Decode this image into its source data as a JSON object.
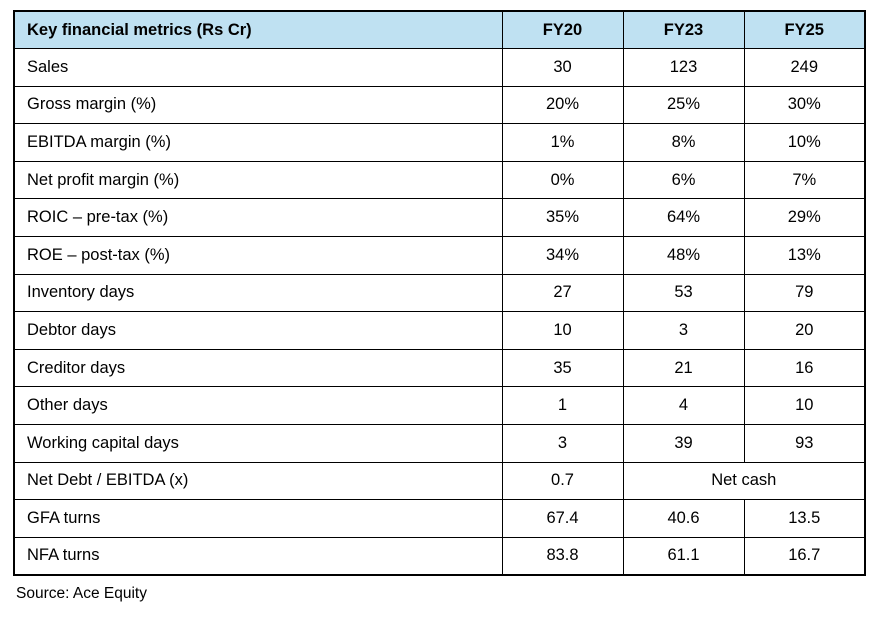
{
  "table": {
    "header": {
      "label": "Key financial metrics (Rs Cr)",
      "columns": [
        "FY20",
        "FY23",
        "FY25"
      ]
    },
    "rows": [
      {
        "label": "Sales",
        "cells": [
          {
            "text": "30"
          },
          {
            "text": "123"
          },
          {
            "text": "249"
          }
        ]
      },
      {
        "label": "Gross margin (%)",
        "cells": [
          {
            "text": "20%"
          },
          {
            "text": "25%"
          },
          {
            "text": "30%"
          }
        ]
      },
      {
        "label": "EBITDA margin (%)",
        "cells": [
          {
            "text": "1%"
          },
          {
            "text": "8%"
          },
          {
            "text": "10%"
          }
        ]
      },
      {
        "label": "Net profit margin (%)",
        "cells": [
          {
            "text": "0%"
          },
          {
            "text": "6%"
          },
          {
            "text": "7%"
          }
        ]
      },
      {
        "label": "ROIC – pre-tax (%)",
        "cells": [
          {
            "text": "35%"
          },
          {
            "text": "64%"
          },
          {
            "text": "29%"
          }
        ]
      },
      {
        "label": "ROE – post-tax (%)",
        "cells": [
          {
            "text": "34%"
          },
          {
            "text": "48%"
          },
          {
            "text": "13%"
          }
        ]
      },
      {
        "label": "Inventory days",
        "cells": [
          {
            "text": "27"
          },
          {
            "text": "53"
          },
          {
            "text": "79"
          }
        ]
      },
      {
        "label": "Debtor days",
        "cells": [
          {
            "text": "10"
          },
          {
            "text": "3"
          },
          {
            "text": "20"
          }
        ]
      },
      {
        "label": "Creditor days",
        "cells": [
          {
            "text": "35"
          },
          {
            "text": "21"
          },
          {
            "text": "16"
          }
        ]
      },
      {
        "label": "Other days",
        "cells": [
          {
            "text": "1"
          },
          {
            "text": "4"
          },
          {
            "text": "10"
          }
        ]
      },
      {
        "label": "Working capital days",
        "cells": [
          {
            "text": "3"
          },
          {
            "text": "39"
          },
          {
            "text": "93"
          }
        ]
      },
      {
        "label": "Net Debt / EBITDA (x)",
        "cells": [
          {
            "text": "0.7"
          },
          {
            "text": "Net cash",
            "colspan": 2
          }
        ]
      },
      {
        "label": "GFA turns",
        "cells": [
          {
            "text": "67.4"
          },
          {
            "text": "40.6"
          },
          {
            "text": "13.5"
          }
        ]
      },
      {
        "label": "NFA turns",
        "cells": [
          {
            "text": "83.8"
          },
          {
            "text": "61.1"
          },
          {
            "text": "16.7"
          }
        ]
      }
    ],
    "source": "Source: Ace Equity",
    "colors": {
      "header_bg": "#bfe1f2",
      "border": "#000000",
      "text": "#000000"
    }
  }
}
